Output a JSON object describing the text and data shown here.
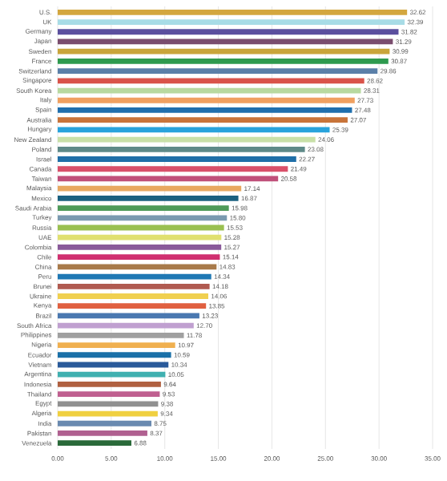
{
  "chart_data": {
    "type": "bar",
    "orientation": "horizontal",
    "categories": [
      "U.S.",
      "UK",
      "Germany",
      "Japan",
      "Sweden",
      "France",
      "Switzerland",
      "Singapore",
      "South Korea",
      "Italy",
      "Spain",
      "Australia",
      "Hungary",
      "New Zealand",
      "Poland",
      "Israel",
      "Canada",
      "Taiwan",
      "Malaysia",
      "Mexico",
      "Saudi Arabia",
      "Turkey",
      "Russia",
      "UAE",
      "Colombia",
      "Chile",
      "China",
      "Peru",
      "Brunei",
      "Ukraine",
      "Kenya",
      "Brazil",
      "South Africa",
      "Philippines",
      "Nigeria",
      "Ecuador",
      "Vietnam",
      "Argentina",
      "Indonesia",
      "Thailand",
      "Egypt",
      "Algeria",
      "India",
      "Pakistan",
      "Venezuela"
    ],
    "values": [
      32.62,
      32.39,
      31.82,
      31.29,
      30.99,
      30.87,
      29.86,
      28.62,
      28.31,
      27.73,
      27.48,
      27.07,
      25.39,
      24.06,
      23.08,
      22.27,
      21.49,
      20.58,
      17.14,
      16.87,
      15.98,
      15.8,
      15.53,
      15.28,
      15.27,
      15.14,
      14.83,
      14.34,
      14.18,
      14.06,
      13.85,
      13.23,
      12.7,
      11.78,
      10.97,
      10.59,
      10.34,
      10.05,
      9.64,
      9.53,
      9.38,
      9.34,
      8.75,
      8.37,
      6.88
    ],
    "value_labels": [
      "32.62",
      "32.39",
      "31.82",
      "31.29",
      "30.99",
      "30.87",
      "29.86",
      "28.62",
      "28.31",
      "27.73",
      "27.48",
      "27.07",
      "25.39",
      "24.06",
      "23.08",
      "22.27",
      "21.49",
      "20.58",
      "17.14",
      "16.87",
      "15.98",
      "15.80",
      "15.53",
      "15.28",
      "15.27",
      "15.14",
      "14.83",
      "14.34",
      "14.18",
      "14.06",
      "13.85",
      "13.23",
      "12.70",
      "11.78",
      "10.97",
      "10.59",
      "10.34",
      "10.05",
      "9.64",
      "9.53",
      "9.38",
      "9.34",
      "8.75",
      "8.37",
      "6.88"
    ],
    "colors": [
      "#d4a73f",
      "#a8dce6",
      "#5b4f9e",
      "#7a4d6e",
      "#c9a53a",
      "#2e9a4e",
      "#5a7fa8",
      "#d9534a",
      "#b8d9a0",
      "#f0a060",
      "#1f6fae",
      "#c8743a",
      "#29a3dc",
      "#c8e0a8",
      "#5e8a88",
      "#1f6fa8",
      "#d9506a",
      "#c0507a",
      "#e8a860",
      "#1a6080",
      "#4e9a58",
      "#7a9ab0",
      "#9ac050",
      "#e0e070",
      "#8a5a9a",
      "#d03070",
      "#a87a4a",
      "#1f78b4",
      "#b05a50",
      "#f0d050",
      "#e06040",
      "#4a78b0",
      "#c0a0d0",
      "#a0a0a0",
      "#f0b050",
      "#1a70a8",
      "#2a5a9a",
      "#40b0b0",
      "#b06040",
      "#c06090",
      "#909090",
      "#f0d040",
      "#6a8ab0",
      "#b06090",
      "#2a6a3a"
    ],
    "xlim": [
      0,
      35
    ],
    "xticks": [
      {
        "value": 0,
        "label": "0.00"
      },
      {
        "value": 5,
        "label": "5.00"
      },
      {
        "value": 10,
        "label": "10.00"
      },
      {
        "value": 15,
        "label": "15.00"
      },
      {
        "value": 20,
        "label": "20.00"
      },
      {
        "value": 25,
        "label": "25.00"
      },
      {
        "value": 30,
        "label": "30.00"
      },
      {
        "value": 35,
        "label": "35.00"
      }
    ],
    "grid": "x"
  }
}
